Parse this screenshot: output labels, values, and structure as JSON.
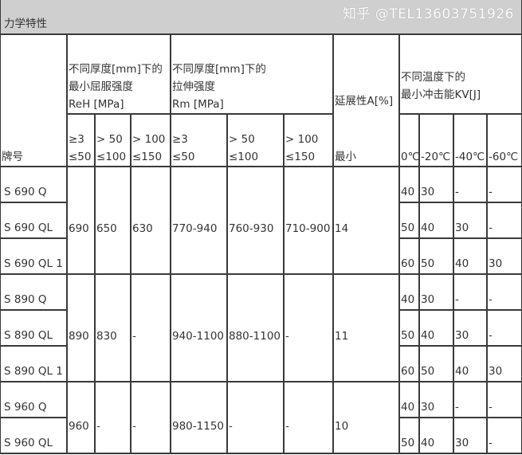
{
  "title": "力学特性",
  "headers": {
    "grade": "牌号",
    "yield": [
      "不同厚度[mm]下的",
      "最小屈服强度",
      "ReH [MPa]"
    ],
    "tensile": [
      "不同厚度[mm]下的",
      "拉伸强度",
      "Rm [MPa]"
    ],
    "elong": "延展性A[%]",
    "impact": [
      "不同温度下的",
      "最小冲击能KV[J]"
    ],
    "thick": [
      [
        "≥3",
        "≤50"
      ],
      [
        "> 50",
        "≤100"
      ],
      [
        "> 100",
        "≤150"
      ],
      [
        "≥3",
        "≤50"
      ],
      [
        "> 50",
        "≤100"
      ],
      [
        "> 100",
        "≤150"
      ]
    ],
    "elong_sub": "最小",
    "temps": [
      "0℃",
      "-20℃",
      "-40℃",
      "-60℃"
    ]
  },
  "groups": [
    {
      "reh": [
        "690",
        "650",
        "630"
      ],
      "rm": [
        "770-940",
        "760-930",
        "710-900"
      ],
      "a": "14",
      "rows": [
        {
          "grade": "S 690 Q",
          "kv": [
            "40",
            "30",
            "-",
            "-"
          ]
        },
        {
          "grade": "S 690 QL",
          "kv": [
            "50",
            "40",
            "30",
            "-"
          ]
        },
        {
          "grade": "S 690 QL 1",
          "kv": [
            "60",
            "50",
            "40",
            "30"
          ]
        }
      ]
    },
    {
      "reh": [
        "890",
        "830",
        "-"
      ],
      "rm": [
        "940-1100",
        "880-1100",
        "-"
      ],
      "a": "11",
      "rows": [
        {
          "grade": "S 890 Q",
          "kv": [
            "40",
            "30",
            "-",
            "-"
          ]
        },
        {
          "grade": "S 890 QL",
          "kv": [
            "50",
            "40",
            "30",
            "-"
          ]
        },
        {
          "grade": "S 890 QL 1",
          "kv": [
            "60",
            "50",
            "40",
            "30"
          ]
        }
      ]
    },
    {
      "reh": [
        "960",
        "-",
        "-"
      ],
      "rm": [
        "980-1150",
        "-",
        "-"
      ],
      "a": "10",
      "rows": [
        {
          "grade": "S 960 Q",
          "kv": [
            "40",
            "30",
            "-",
            "-"
          ]
        },
        {
          "grade": "S 960 QL",
          "kv": [
            "50",
            "40",
            "30",
            "-"
          ]
        }
      ]
    }
  ],
  "watermark": "知乎 @TEL13603751926"
}
